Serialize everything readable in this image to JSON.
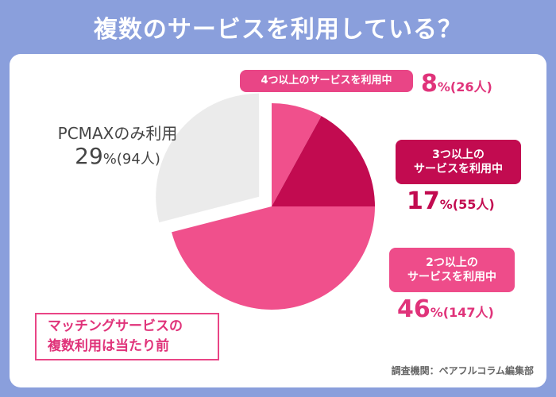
{
  "title": "複数のサービスを利用している？",
  "colors": {
    "background": "#8a9fdc",
    "pink": "#f0508c",
    "crimson": "#c20b50",
    "gray": "#ebebeb"
  },
  "chart_data": {
    "type": "pie",
    "title": "複数のサービスを利用している？",
    "slices": [
      {
        "label": "4つ以上のサービスを利用中",
        "percent": 8,
        "count": 26,
        "color": "#f0508c"
      },
      {
        "label": "3つ以上のサービスを利用中",
        "percent": 17,
        "count": 55,
        "color": "#c20b50"
      },
      {
        "label": "2つ以上のサービスを利用中",
        "percent": 46,
        "count": 147,
        "color": "#f0508c"
      },
      {
        "label": "PCMAXのみ利用",
        "percent": 29,
        "count": 94,
        "color": "#ebebeb",
        "exploded": true
      }
    ]
  },
  "labels": {
    "s8": {
      "line1": "4つ以上のサービスを利用中",
      "pct": "8",
      "unit": "%",
      "count": "(26人)"
    },
    "s17": {
      "line1": "3つ以上の",
      "line2": "サービスを利用中",
      "pct": "17",
      "unit": "%",
      "count": "(55人)"
    },
    "s46": {
      "line1": "2つ以上の",
      "line2": "サービスを利用中",
      "pct": "46",
      "unit": "%",
      "count": "(147人)"
    },
    "s29": {
      "line1": "PCMAXのみ利用",
      "pct": "29",
      "unit": "%",
      "count": "(94人)"
    }
  },
  "callout": {
    "line1": "マッチングサービスの",
    "line2": "複数利用は当たり前"
  },
  "source": "調査機関：ペアフルコラム編集部"
}
